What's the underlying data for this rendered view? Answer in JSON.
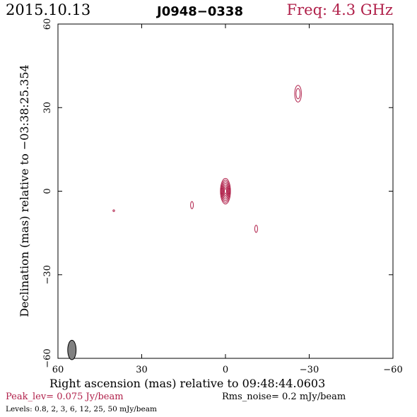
{
  "header": {
    "date": "2015.10.13",
    "source": "J0948−0338",
    "frequency": "Freq: 4.3 GHz"
  },
  "footer": {
    "peak": "Peak_lev=  0.075 Jy/beam",
    "rms": "Rms_noise=   0.2 mJy/beam",
    "levels": "Levels: 0.8,    2,    3,    6,   12,   25,   50 mJy/beam"
  },
  "colors": {
    "contour": "#b0204a",
    "beam": "#808080",
    "frame": "#000000"
  },
  "chart_data": {
    "type": "contour",
    "xlabel": "Right ascension (mas) relative to 09:48:44.0603",
    "ylabel": "Declination (mas) relative to −03:38:25.354",
    "xlim": [
      60,
      -60
    ],
    "ylim": [
      -60,
      60
    ],
    "x_ticks": [
      60,
      30,
      0,
      -30,
      -60
    ],
    "y_ticks": [
      -60,
      -30,
      0,
      30,
      60
    ],
    "x_tick_labels": [
      "60",
      "30",
      "0",
      "−30",
      "−60"
    ],
    "y_tick_labels": [
      "−60",
      "−30",
      "0",
      "30",
      "60"
    ],
    "peak_jy_per_beam": 0.075,
    "rms_noise_mjy_per_beam": 0.2,
    "levels_mjy_per_beam": [
      0.8,
      2,
      3,
      6,
      12,
      25,
      50
    ],
    "components": [
      {
        "x": 0,
        "y": 0,
        "rx": 1.8,
        "ry": 4.6,
        "levels": 7
      },
      {
        "x": -26,
        "y": 35,
        "rx": 1.2,
        "ry": 3.0,
        "levels": 2
      },
      {
        "x": 12,
        "y": -5,
        "rx": 0.5,
        "ry": 1.3,
        "levels": 1
      },
      {
        "x": -11,
        "y": -13.5,
        "rx": 0.5,
        "ry": 1.3,
        "levels": 1
      },
      {
        "x": 40,
        "y": -7,
        "rx": 0.3,
        "ry": 0.3,
        "levels": 1
      }
    ],
    "beam": {
      "x": 55,
      "y": -57,
      "rx": 1.5,
      "ry": 3.5
    }
  }
}
